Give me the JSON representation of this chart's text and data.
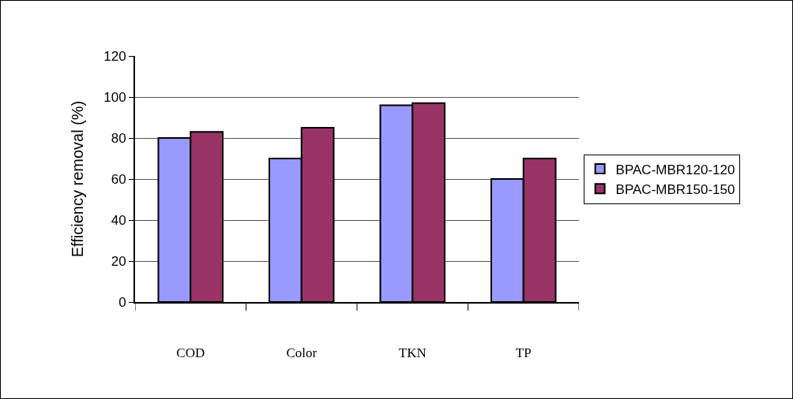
{
  "chart_data": {
    "type": "bar",
    "ylabel": "Efficiency removal (%)",
    "categories": [
      "COD",
      "Color",
      "TKN",
      "TP"
    ],
    "series": [
      {
        "name": "BPAC-MBR120-120",
        "color": "#9999ff",
        "values": [
          80,
          70,
          96,
          60
        ]
      },
      {
        "name": "BPAC-MBR150-150",
        "color": "#993366",
        "values": [
          83,
          85,
          97,
          70
        ]
      }
    ],
    "ylim": [
      0,
      120
    ],
    "yticks": [
      0,
      20,
      40,
      60,
      80,
      100,
      120
    ],
    "grid": "y",
    "legend": "right"
  }
}
